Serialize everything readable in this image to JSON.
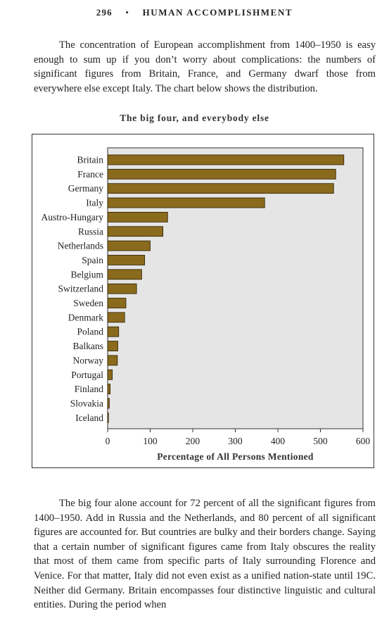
{
  "page_number": "296",
  "running_title": "HUMAN ACCOMPLISHMENT",
  "paragraph_1": "The concentration of European accomplishment from 1400–1950 is easy enough to sum up if you don’t worry about complications: the numbers of significant figures from Britain, France, and Germany dwarf those from everywhere else except Italy. The chart below shows the distribution.",
  "paragraph_2": "The big four alone account for 72 percent of all the significant figures from 1400–1950. Add in Russia and the Netherlands, and 80 percent of all significant figures are accounted for. But countries are bulky and their borders change. Saying that a certain number of significant figures came from Italy obscures the reality that most of them came from specific parts of Italy surrounding Florence and Venice. For that matter, Italy did not even exist as a unified nation-state until 19C. Neither did Germany. Britain encompasses four distinctive linguistic and cultural entities. During the period when",
  "chart_data": {
    "type": "bar",
    "orientation": "horizontal",
    "title": "The big four, and everybody else",
    "xlabel": "Percentage of All Persons Mentioned",
    "ylabel": "",
    "xlim": [
      0,
      600
    ],
    "xticks": [
      "0",
      "100",
      "200",
      "300",
      "400",
      "500",
      "600"
    ],
    "categories": [
      "Britain",
      "France",
      "Germany",
      "Italy",
      "Austro-Hungary",
      "Russia",
      "Netherlands",
      "Spain",
      "Belgium",
      "Switzerland",
      "Sweden",
      "Denmark",
      "Poland",
      "Balkans",
      "Norway",
      "Portugal",
      "Finland",
      "Slovakia",
      "Iceland"
    ],
    "values": [
      555,
      536,
      531,
      369,
      141,
      130,
      100,
      87,
      80,
      68,
      43,
      40,
      26,
      24,
      23,
      11,
      6,
      4,
      2
    ],
    "bar_color": "#8a6a1c",
    "plot_background": "#e5e5e5",
    "grid": true
  }
}
